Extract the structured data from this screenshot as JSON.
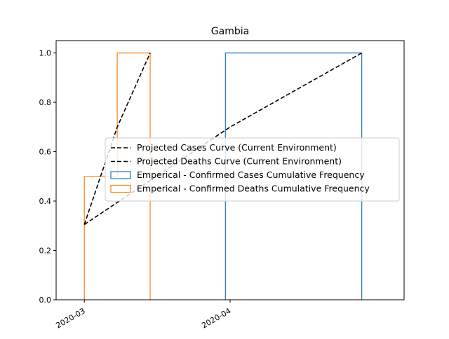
{
  "chart_data": {
    "type": "line",
    "title": "Gambia",
    "xlabel": "",
    "ylabel": "",
    "x_ticks": [
      "2020-03",
      "2020-04"
    ],
    "y_ticks": [
      "0.0",
      "0.2",
      "0.4",
      "0.6",
      "0.8",
      "1.0"
    ],
    "xlim": [
      "2020-02-24",
      "2020-05-08"
    ],
    "ylim": [
      0,
      1.05
    ],
    "grid": false,
    "legend_placement": "center-right",
    "series": [
      {
        "name": "Projected Cases Curve (Current Environment)",
        "kind": "line",
        "style": "dashed",
        "color": "#000000",
        "points": [
          [
            "2020-03-01",
            0.305
          ],
          [
            "2020-04-01",
            0.7
          ],
          [
            "2020-04-29",
            1.0
          ]
        ]
      },
      {
        "name": "Projected Deaths Curve (Current Environment)",
        "kind": "line",
        "style": "dashed",
        "color": "#000000",
        "points": [
          [
            "2020-03-01",
            0.305
          ],
          [
            "2020-03-08",
            0.7
          ],
          [
            "2020-03-15",
            1.0
          ]
        ]
      },
      {
        "name": "Emperical - Confirmed Cases Cumulative Frequency",
        "kind": "step",
        "color": "#1f77b4",
        "steps": [
          [
            "2020-03-31",
            1.0
          ],
          [
            "2020-04-29",
            0
          ]
        ]
      },
      {
        "name": "Emperical - Confirmed Deaths Cumulative Frequency",
        "kind": "step",
        "color": "#ff7f0e",
        "steps": [
          [
            "2020-03-01",
            0.5
          ],
          [
            "2020-03-08",
            1.0
          ],
          [
            "2020-03-15",
            0
          ]
        ]
      }
    ]
  }
}
